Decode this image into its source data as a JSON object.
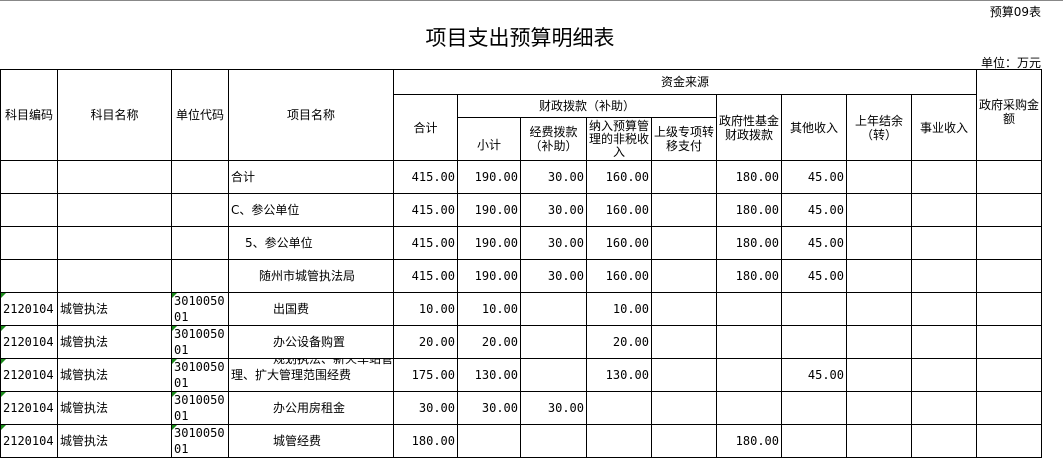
{
  "form_no": "预算09表",
  "title": "项目支出预算明细表",
  "unit": "单位：万元",
  "headers": {
    "subject_code": "科目编码",
    "subject_name": "科目名称",
    "unit_code": "单位代码",
    "project_name": "项目名称",
    "fund_source": "资金来源",
    "total": "合计",
    "fiscal": "财政拨款（补助）",
    "subtotal": "小计",
    "funding": "经费拨款（补助）",
    "nontax": "纳入预算管理的非税收入",
    "transfer": "上级专项转移支付",
    "gov_fund": "政府性基金财政拨款",
    "other": "其他收入",
    "carryover": "上年结余（转）",
    "business": "事业收入",
    "procurement": "政府采购金额"
  },
  "rows": [
    {
      "code": "",
      "sname": "",
      "ucode": "",
      "pname": "合计",
      "indent": 0,
      "v": [
        "415.00",
        "190.00",
        "30.00",
        "160.00",
        "",
        "180.00",
        "45.00",
        "",
        "",
        ""
      ]
    },
    {
      "code": "",
      "sname": "",
      "ucode": "",
      "pname": "C、参公单位",
      "indent": 0,
      "v": [
        "415.00",
        "190.00",
        "30.00",
        "160.00",
        "",
        "180.00",
        "45.00",
        "",
        "",
        ""
      ]
    },
    {
      "code": "",
      "sname": "",
      "ucode": "",
      "pname": "5、参公单位",
      "indent": 14,
      "v": [
        "415.00",
        "190.00",
        "30.00",
        "160.00",
        "",
        "180.00",
        "45.00",
        "",
        "",
        ""
      ]
    },
    {
      "code": "",
      "sname": "",
      "ucode": "",
      "pname": "随州市城管执法局",
      "indent": 28,
      "v": [
        "415.00",
        "190.00",
        "30.00",
        "160.00",
        "",
        "180.00",
        "45.00",
        "",
        "",
        ""
      ]
    },
    {
      "code": "2120104",
      "sname": "城管执法",
      "ucode": "301005001",
      "pname": "出国费",
      "indent": 42,
      "v": [
        "10.00",
        "10.00",
        "",
        "10.00",
        "",
        "",
        "",
        "",
        "",
        ""
      ]
    },
    {
      "code": "2120104",
      "sname": "城管执法",
      "ucode": "301005001",
      "pname": "办公设备购置",
      "indent": 42,
      "v": [
        "20.00",
        "20.00",
        "",
        "20.00",
        "",
        "",
        "",
        "",
        "",
        ""
      ]
    },
    {
      "code": "2120104",
      "sname": "城管执法",
      "ucode": "301005001",
      "pname": "规划执法、新火车站管理、扩大管理范围经费",
      "indent": 0,
      "clip": true,
      "v": [
        "175.00",
        "130.00",
        "",
        "130.00",
        "",
        "",
        "45.00",
        "",
        "",
        ""
      ]
    },
    {
      "code": "2120104",
      "sname": "城管执法",
      "ucode": "301005001",
      "pname": "办公用房租金",
      "indent": 42,
      "v": [
        "30.00",
        "30.00",
        "30.00",
        "",
        "",
        "",
        "",
        "",
        "",
        ""
      ]
    },
    {
      "code": "2120104",
      "sname": "城管执法",
      "ucode": "301005001",
      "pname": "城管经费",
      "indent": 42,
      "v": [
        "180.00",
        "",
        "",
        "",
        "",
        "180.00",
        "",
        "",
        "",
        ""
      ]
    }
  ]
}
